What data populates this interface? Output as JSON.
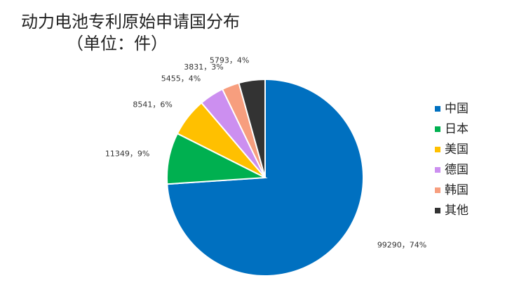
{
  "chart_data": {
    "type": "pie",
    "title": "动力电池专利原始申请国分布",
    "subtitle": "（单位：件）",
    "categories": [
      "中国",
      "日本",
      "美国",
      "德国",
      "韩国",
      "其他"
    ],
    "values": [
      99290,
      11349,
      8541,
      5455,
      3831,
      5793
    ],
    "value_labels": [
      "99290，74%",
      "11349，9%",
      "8541，6%",
      "5455，4%",
      "3831，3%",
      "5793，4%"
    ],
    "colors": [
      "#0070c0",
      "#00b050",
      "#ffc000",
      "#cc8ff0",
      "#f79e7e",
      "#333333"
    ],
    "legend": "right"
  }
}
